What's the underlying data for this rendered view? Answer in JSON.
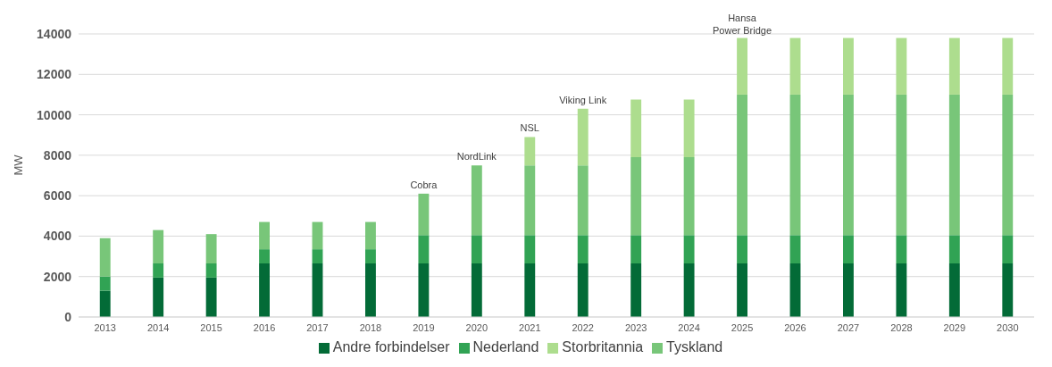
{
  "chart_data": {
    "type": "bar",
    "stacked": true,
    "ylabel": "MW",
    "categories": [
      "2013",
      "2014",
      "2015",
      "2016",
      "2017",
      "2018",
      "2019",
      "2020",
      "2021",
      "2022",
      "2023",
      "2024",
      "2025",
      "2026",
      "2027",
      "2028",
      "2029",
      "2030"
    ],
    "series": [
      {
        "name": "Andre forbindelser",
        "color": "#036b37",
        "values": [
          1300,
          1950,
          1950,
          2650,
          2650,
          2650,
          2650,
          2650,
          2650,
          2650,
          2650,
          2650,
          2650,
          2650,
          2650,
          2650,
          2650,
          2650
        ]
      },
      {
        "name": "Nederland",
        "color": "#31a354",
        "values": [
          700,
          700,
          700,
          700,
          700,
          700,
          1400,
          1400,
          1400,
          1400,
          1400,
          1400,
          1400,
          1400,
          1400,
          1400,
          1400,
          1400
        ]
      },
      {
        "name": "Tyskland",
        "color": "#78c679",
        "values": [
          1900,
          1650,
          1450,
          1350,
          1350,
          1350,
          2050,
          3450,
          3450,
          3450,
          3850,
          3850,
          6950,
          6950,
          6950,
          6950,
          6950,
          6950
        ]
      },
      {
        "name": "Storbritannia",
        "color": "#addd8e",
        "values": [
          0,
          0,
          0,
          0,
          0,
          0,
          0,
          0,
          1400,
          2800,
          2850,
          2850,
          2800,
          2800,
          2800,
          2800,
          2800,
          2800
        ]
      }
    ],
    "ylim": [
      0,
      14000
    ],
    "yticks": [
      0,
      2000,
      4000,
      6000,
      8000,
      10000,
      12000,
      14000
    ],
    "grid": "y",
    "legend": "bottom",
    "annotations": [
      {
        "text": "Cobra",
        "x": "2019",
        "y": 6150
      },
      {
        "text": "NordLink",
        "x": "2020",
        "y": 7550
      },
      {
        "text": "NSL",
        "x": "2021",
        "y": 8950
      },
      {
        "text": "Viking Link",
        "x": "2022",
        "y": 10350
      },
      {
        "text": "Hansa\nPower Bridge",
        "x": "2025",
        "y": 13800
      }
    ]
  }
}
